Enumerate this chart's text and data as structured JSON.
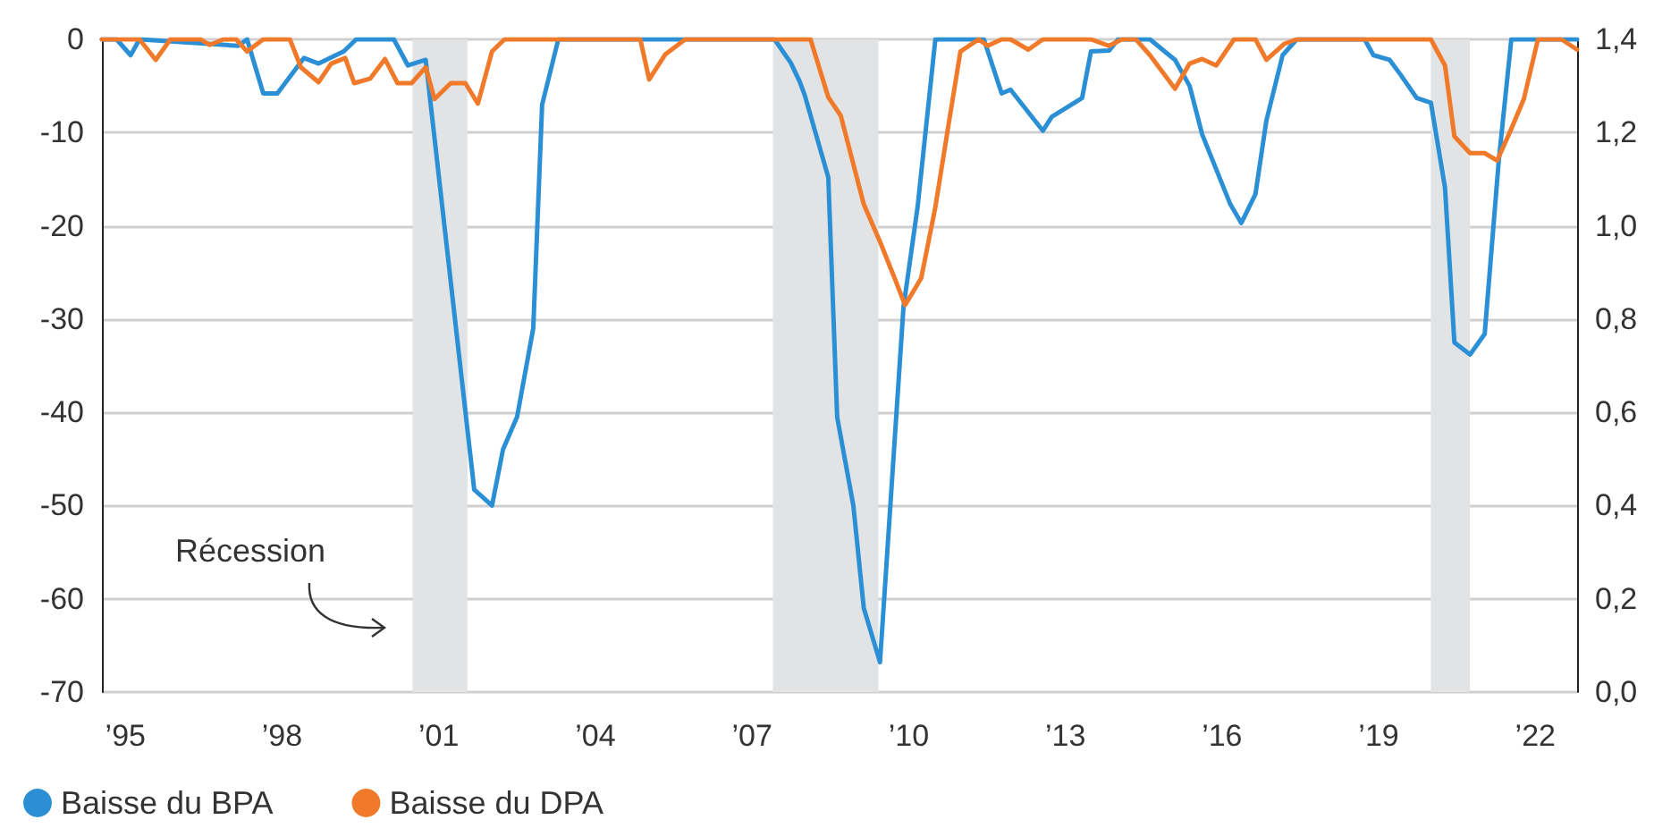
{
  "chart_data": {
    "type": "line",
    "series": [
      {
        "name": "Baisse du BPA",
        "color": "#2b8fd6",
        "x": [
          1994.55,
          1994.83,
          1995.1,
          1995.27,
          1997.16,
          1997.33,
          1997.64,
          1997.91,
          1998.42,
          1998.7,
          1999.18,
          1999.42,
          2000.14,
          2000.41,
          2000.75,
          2001.68,
          2002.02,
          2002.23,
          2002.5,
          2002.81,
          2002.98,
          2003.29,
          2007.43,
          2007.74,
          2007.91,
          2008.01,
          2008.46,
          2008.63,
          2008.94,
          2009.14,
          2009.45,
          2009.9,
          2010.17,
          2010.51,
          2011.44,
          2011.78,
          2011.95,
          2012.57,
          2012.74,
          2013.32,
          2013.49,
          2013.84,
          2014.01,
          2014.62,
          2015.1,
          2015.38,
          2015.62,
          2016.16,
          2016.37,
          2016.64,
          2016.85,
          2017.16,
          2017.43,
          2018.73,
          2018.9,
          2019.21,
          2019.42,
          2019.73,
          2020.0,
          2020.27,
          2020.45,
          2020.75,
          2021.03,
          2021.3,
          2021.54,
          2022.8
        ],
        "values": [
          0,
          0,
          -1.7,
          0,
          -0.7,
          0,
          -5.8,
          -5.8,
          -2,
          -2.6,
          -1.3,
          0,
          0,
          -2.8,
          -2.2,
          -48.3,
          -50,
          -44,
          -40.5,
          -31,
          -7,
          0,
          0,
          -2.5,
          -4.5,
          -6,
          -14.8,
          -40.5,
          -50,
          -61,
          -66.8,
          -28.7,
          -18,
          0,
          0,
          -5.8,
          -5.4,
          -9.8,
          -8.3,
          -6.3,
          -1.3,
          -1.2,
          0,
          0,
          -2.2,
          -5,
          -10.2,
          -17.7,
          -19.7,
          -16.6,
          -8.7,
          -1.7,
          0,
          0,
          -1.7,
          -2.2,
          -3.8,
          -6.3,
          -6.8,
          -15.9,
          -32.5,
          -33.8,
          -31.6,
          -13,
          0,
          0
        ]
      },
      {
        "name": "Baisse du DPA",
        "color": "#f07a2a",
        "x": [
          1994.55,
          1995.27,
          1995.58,
          1995.86,
          1996.44,
          1996.61,
          1996.88,
          1997.12,
          1997.33,
          1997.64,
          1998.15,
          1998.36,
          1998.7,
          1998.94,
          1999.21,
          1999.38,
          1999.69,
          1999.97,
          2000.21,
          2000.48,
          2000.75,
          2000.92,
          2001.23,
          2001.51,
          2001.75,
          2002.02,
          2002.26,
          2004.86,
          2005.03,
          2005.34,
          2005.72,
          2008.12,
          2008.46,
          2008.7,
          2009.14,
          2009.45,
          2009.73,
          2009.93,
          2010.24,
          2010.51,
          2010.75,
          2010.99,
          2011.34,
          2011.51,
          2011.78,
          2011.95,
          2012.29,
          2012.57,
          2013.49,
          2013.84,
          2014.08,
          2014.35,
          2014.62,
          2015.1,
          2015.38,
          2015.62,
          2015.89,
          2016.23,
          2016.64,
          2016.85,
          2017.19,
          2017.43,
          2020.0,
          2020.27,
          2020.45,
          2020.75,
          2021.03,
          2021.27,
          2021.54,
          2021.78,
          2022.05,
          2022.5,
          2022.8
        ],
        "values": [
          0,
          0,
          -2.2,
          0,
          0,
          -0.6,
          0,
          0,
          -1.3,
          0,
          0,
          -3,
          -4.6,
          -2.6,
          -2,
          -4.7,
          -4.2,
          -2.1,
          -4.7,
          -4.7,
          -3,
          -6.4,
          -4.7,
          -4.7,
          -6.9,
          -1.3,
          0,
          0,
          -4.3,
          -1.6,
          0,
          0,
          -6.2,
          -8.2,
          -17.7,
          -21.7,
          -25.6,
          -28.5,
          -25.6,
          -18,
          -9.6,
          -1.3,
          0,
          -0.7,
          0,
          0,
          -1.1,
          0,
          0,
          -0.7,
          0,
          0,
          -1.7,
          -5.3,
          -2.6,
          -2.1,
          -2.8,
          0,
          0,
          -2.2,
          -0.5,
          0,
          0,
          -2.8,
          -10.4,
          -12.2,
          -12.2,
          -13,
          -9.6,
          -6.4,
          0,
          0,
          -1.1
        ]
      }
    ],
    "xlim": [
      1994.55,
      2022.8
    ],
    "xticks": [
      {
        "value": 1995,
        "label": "’95"
      },
      {
        "value": 1998,
        "label": "’98"
      },
      {
        "value": 2001,
        "label": "’01"
      },
      {
        "value": 2004,
        "label": "’04"
      },
      {
        "value": 2007,
        "label": "’07"
      },
      {
        "value": 2010,
        "label": "’10"
      },
      {
        "value": 2013,
        "label": "’13"
      },
      {
        "value": 2016,
        "label": "’16"
      },
      {
        "value": 2019,
        "label": "’19"
      },
      {
        "value": 2022,
        "label": "’22"
      }
    ],
    "ylim": [
      -70,
      0
    ],
    "yticks": [
      -70,
      -60,
      -50,
      -40,
      -30,
      -20,
      -10,
      0
    ],
    "y2lim": [
      0,
      1.4
    ],
    "y2ticks": [
      {
        "value": 0,
        "label": "0,0"
      },
      {
        "value": 0.2,
        "label": "0,2"
      },
      {
        "value": 0.4,
        "label": "0,4"
      },
      {
        "value": 0.6,
        "label": "0,6"
      },
      {
        "value": 0.8,
        "label": "0,8"
      },
      {
        "value": 1.0,
        "label": "1,0"
      },
      {
        "value": 1.2,
        "label": "1,2"
      },
      {
        "value": 1.4,
        "label": "1,4"
      }
    ],
    "bands": [
      {
        "axis": "x",
        "from": 2000.5,
        "to": 2001.55,
        "color": "#e2e3e5"
      },
      {
        "axis": "x",
        "from": 2007.4,
        "to": 2009.42,
        "color": "#e2e3e5"
      },
      {
        "axis": "x",
        "from": 2020.0,
        "to": 2020.75,
        "color": "#e2e3e5"
      }
    ],
    "annotations": [
      "Récession"
    ],
    "grid": "y",
    "legend": "bottom left",
    "marker": "none",
    "line_style": "solid"
  }
}
